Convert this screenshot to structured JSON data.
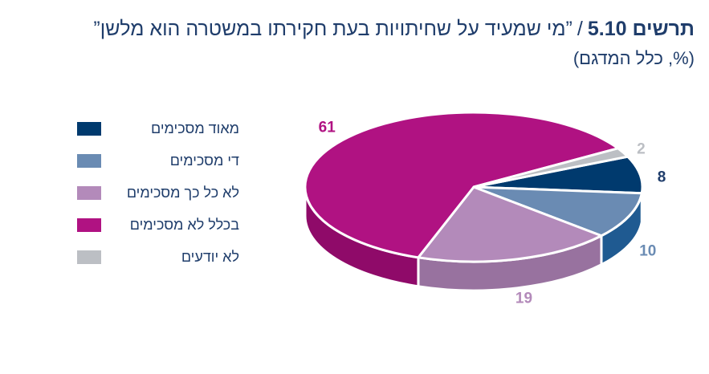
{
  "header": {
    "figure_label": "תרשים 5.10",
    "separator": "/",
    "title": "”מי שמעיד על שחיתויות בעת חקירתו במשטרה הוא מלשן”",
    "subtitle": "(%, כלל המדגם)"
  },
  "chart_data": {
    "type": "pie",
    "title": "”מי שמעיד על שחיתויות בעת חקירתו במשטרה הוא מלשן”",
    "subtitle": "(%, כלל המדגם)",
    "style": "3d",
    "legend_position": "left",
    "slices": [
      {
        "label": "מאוד מסכימים",
        "value": 8,
        "color": "#003a6e",
        "side_color": "#002a52",
        "label_color": "#1f3d6b"
      },
      {
        "label": "די מסכימים",
        "value": 10,
        "color": "#6a8bb3",
        "side_color": "#1f5a91",
        "label_color": "#6a8bb3"
      },
      {
        "label": "לא כל כך מסכימים",
        "value": 19,
        "color": "#b38aba",
        "side_color": "#98729f",
        "label_color": "#b38aba"
      },
      {
        "label": "בכלל לא מסכימים",
        "value": 61,
        "color": "#b01282",
        "side_color": "#8f0a69",
        "label_color": "#b01282"
      },
      {
        "label": "לא יודעים",
        "value": 2,
        "color": "#bcbfc4",
        "side_color": "#9a9da1",
        "label_color": "#bcbfc4"
      }
    ]
  }
}
